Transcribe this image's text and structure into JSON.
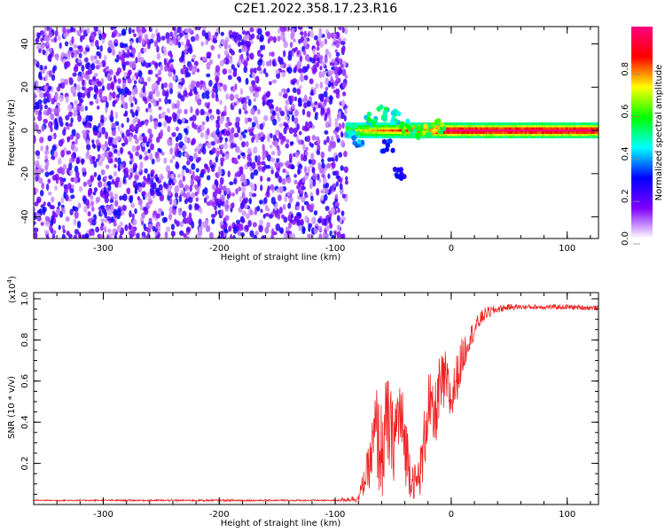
{
  "title": "C2E1.2022.358.17.23.R16",
  "chart_data": [
    {
      "type": "heatmap",
      "xlabel": "Height of straight line (km)",
      "ylabel": "Frequency (Hz)",
      "xlim": [
        -360,
        127
      ],
      "ylim": [
        -50,
        48
      ],
      "xticks": [
        -300,
        -200,
        -100,
        0,
        100
      ],
      "yticks": [
        -40,
        -20,
        0,
        20,
        40
      ],
      "colorbar": {
        "label": "Normalized spectral amplitude",
        "range": [
          0,
          1
        ],
        "ticks": [
          "0.0",
          "0.2",
          "0.4",
          "0.6",
          "0.8"
        ],
        "colors": [
          "#ffffff",
          "#8000ff",
          "#0000ff",
          "#00ffff",
          "#00ff00",
          "#ffff00",
          "#ff0000",
          "#ff0080"
        ]
      },
      "regions": {
        "noise": {
          "x_range": [
            -360,
            -90
          ],
          "y_range": [
            -50,
            48
          ],
          "amplitude": [
            0.05,
            0.3
          ]
        },
        "signal_line": {
          "x_range": [
            -90,
            127
          ],
          "y_center": 0,
          "y_halfwidth": 3,
          "amplitude": [
            0.5,
            1.0
          ]
        },
        "dispersion": [
          {
            "x": -85,
            "y": 0,
            "amplitude": 0.5
          },
          {
            "x": -80,
            "y": -4,
            "amplitude": 0.45
          },
          {
            "x": -70,
            "y": 5,
            "amplitude": 0.55
          },
          {
            "x": -60,
            "y": 8,
            "amplitude": 0.5
          },
          {
            "x": -50,
            "y": 6,
            "amplitude": 0.55
          },
          {
            "x": -40,
            "y": 2,
            "amplitude": 0.6
          },
          {
            "x": -30,
            "y": -2,
            "amplitude": 0.6
          },
          {
            "x": -20,
            "y": 0,
            "amplitude": 0.7
          },
          {
            "x": -10,
            "y": 2,
            "amplitude": 0.7
          },
          {
            "x": -45,
            "y": -20,
            "amplitude": 0.3
          },
          {
            "x": -55,
            "y": -7,
            "amplitude": 0.35
          }
        ]
      }
    },
    {
      "type": "line",
      "xlabel": "Height of straight line (km)",
      "ylabel": "SNR (10 * v/v)",
      "y_multiplier": "(x10",
      "y_multiplier_exp": "4",
      "y_multiplier_close": ")",
      "xlim": [
        -360,
        127
      ],
      "ylim": [
        0,
        1.03
      ],
      "xticks": [
        -300,
        -200,
        -100,
        0,
        100
      ],
      "yticks": [
        0.2,
        0.4,
        0.6,
        0.8,
        1.0
      ],
      "color": "#ee2222",
      "series": [
        {
          "x": [
            -360,
            -300,
            -250,
            -200,
            -150,
            -100,
            -80,
            -70,
            -65,
            -60,
            -55,
            -50,
            -45,
            -40,
            -35,
            -30,
            -25,
            -20,
            -15,
            -10,
            -5,
            0,
            5,
            10,
            15,
            20,
            25,
            30,
            40,
            50,
            60,
            80,
            100,
            127
          ],
          "y": [
            0.02,
            0.02,
            0.02,
            0.02,
            0.02,
            0.02,
            0.03,
            0.2,
            0.35,
            0.25,
            0.4,
            0.3,
            0.45,
            0.3,
            0.15,
            0.1,
            0.2,
            0.5,
            0.4,
            0.55,
            0.6,
            0.5,
            0.62,
            0.72,
            0.8,
            0.85,
            0.9,
            0.93,
            0.95,
            0.96,
            0.96,
            0.96,
            0.96,
            0.955
          ],
          "noise_amplitude": [
            0.003,
            0.004,
            0.004,
            0.005,
            0.004,
            0.004,
            0.02,
            0.12,
            0.25,
            0.25,
            0.25,
            0.2,
            0.22,
            0.2,
            0.12,
            0.08,
            0.15,
            0.2,
            0.15,
            0.18,
            0.15,
            0.12,
            0.12,
            0.1,
            0.06,
            0.05,
            0.04,
            0.03,
            0.02,
            0.015,
            0.012,
            0.012,
            0.012,
            0.012
          ]
        }
      ]
    }
  ]
}
